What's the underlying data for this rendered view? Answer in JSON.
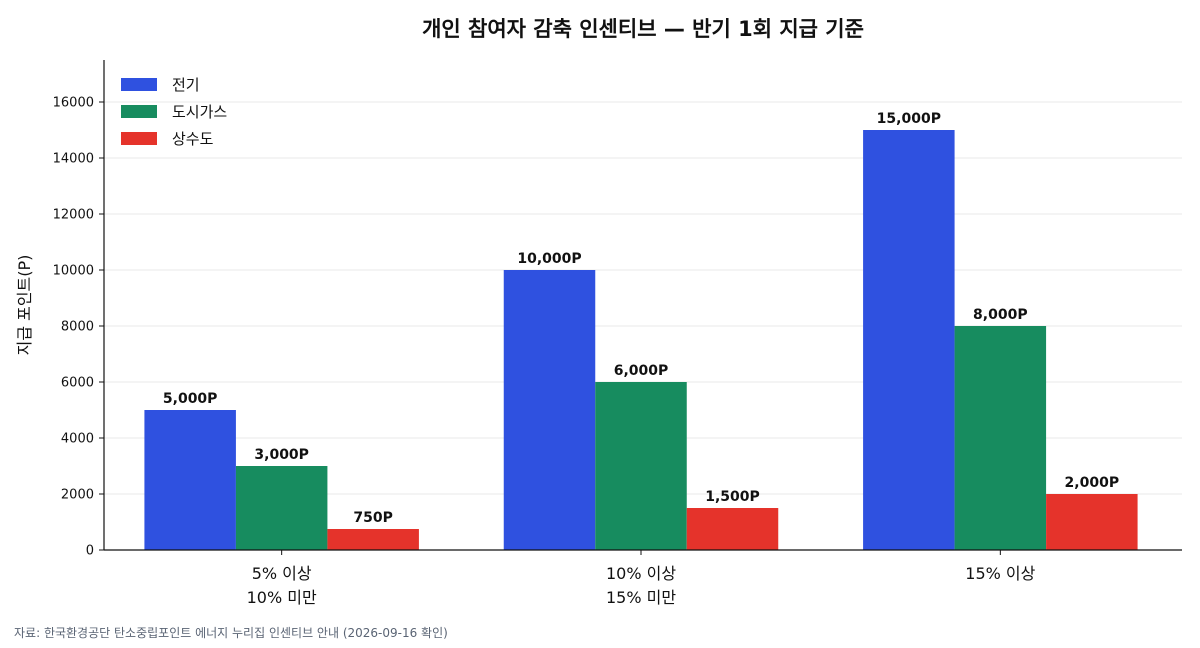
{
  "chart_data": {
    "type": "bar",
    "title": "개인 참여자 감축 인센티브 — 반기 1회 지급 기준",
    "ylabel": "지급 포인트(P)",
    "xlabel": "",
    "ylim": [
      0,
      17500
    ],
    "yticks": [
      0,
      2000,
      4000,
      6000,
      8000,
      10000,
      12000,
      14000,
      16000
    ],
    "grid": "horizontal",
    "legend_position": "top-left",
    "categories": [
      [
        "5% 이상",
        "10% 미만"
      ],
      [
        "10% 이상",
        "15% 미만"
      ],
      [
        "15% 이상"
      ]
    ],
    "series": [
      {
        "name": "전기",
        "color": "#2f51e0",
        "values": [
          5000,
          10000,
          15000
        ],
        "labels": [
          "5,000P",
          "10,000P",
          "15,000P"
        ]
      },
      {
        "name": "도시가스",
        "color": "#178c5f",
        "values": [
          3000,
          6000,
          8000
        ],
        "labels": [
          "3,000P",
          "6,000P",
          "8,000P"
        ]
      },
      {
        "name": "상수도",
        "color": "#e5332b",
        "values": [
          750,
          1500,
          2000
        ],
        "labels": [
          "750P",
          "1,500P",
          "2,000P"
        ]
      }
    ],
    "source": "자료: 한국환경공단 탄소중립포인트 에너지 누리집 인센티브 안내 (2026-09-16 확인)"
  }
}
